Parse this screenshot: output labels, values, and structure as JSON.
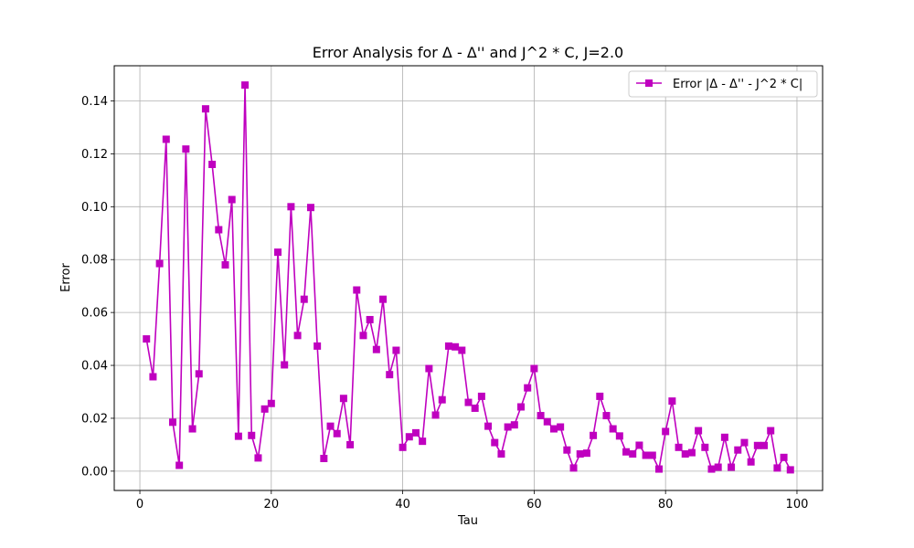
{
  "chart_data": {
    "type": "line",
    "title": "Error Analysis for Δ - Δ'' and J^2 * C, J=2.0",
    "xlabel": "Tau",
    "ylabel": "Error",
    "xlim": [
      -3.9,
      103.9
    ],
    "ylim": [
      -0.0073,
      0.1533
    ],
    "xticks": [
      0,
      20,
      40,
      60,
      80,
      100
    ],
    "xtick_labels": [
      "0",
      "20",
      "40",
      "60",
      "80",
      "100"
    ],
    "yticks": [
      0.0,
      0.02,
      0.04,
      0.06,
      0.08,
      0.1,
      0.12,
      0.14
    ],
    "ytick_labels": [
      "0.00",
      "0.02",
      "0.04",
      "0.06",
      "0.08",
      "0.10",
      "0.12",
      "0.14"
    ],
    "grid": true,
    "legend_position": "top-right",
    "series": [
      {
        "name": "Error |Δ - Δ'' - J^2 * C|",
        "color": "#bf00bf",
        "marker": "square",
        "x": [
          1,
          2,
          3,
          4,
          5,
          6,
          7,
          8,
          9,
          10,
          11,
          12,
          13,
          14,
          15,
          16,
          17,
          18,
          19,
          20,
          21,
          22,
          23,
          24,
          25,
          26,
          27,
          28,
          29,
          30,
          31,
          32,
          33,
          34,
          35,
          36,
          37,
          38,
          39,
          40,
          41,
          42,
          43,
          44,
          45,
          46,
          47,
          48,
          49,
          50,
          51,
          52,
          53,
          54,
          55,
          56,
          57,
          58,
          59,
          60,
          61,
          62,
          63,
          64,
          65,
          66,
          67,
          68,
          69,
          70,
          71,
          72,
          73,
          74,
          75,
          76,
          77,
          78,
          79,
          80,
          81,
          82,
          83,
          84,
          85,
          86,
          87,
          88,
          89,
          90,
          91,
          92,
          93,
          94,
          95,
          96,
          97,
          98,
          99
        ],
        "values": [
          0.05,
          0.0357,
          0.0785,
          0.1255,
          0.0185,
          0.0022,
          0.1218,
          0.016,
          0.0368,
          0.137,
          0.116,
          0.0913,
          0.078,
          0.1027,
          0.0132,
          0.146,
          0.0135,
          0.005,
          0.0235,
          0.0256,
          0.0828,
          0.0402,
          0.1,
          0.0513,
          0.065,
          0.0997,
          0.0473,
          0.0048,
          0.017,
          0.0142,
          0.0275,
          0.01,
          0.0685,
          0.0513,
          0.0573,
          0.046,
          0.065,
          0.0365,
          0.0457,
          0.009,
          0.013,
          0.0145,
          0.0113,
          0.0388,
          0.0212,
          0.027,
          0.0473,
          0.047,
          0.0457,
          0.026,
          0.0238,
          0.0283,
          0.017,
          0.0108,
          0.0065,
          0.0167,
          0.0175,
          0.0243,
          0.0315,
          0.0388,
          0.021,
          0.0187,
          0.016,
          0.0167,
          0.008,
          0.0012,
          0.0065,
          0.0068,
          0.0135,
          0.0283,
          0.021,
          0.016,
          0.0133,
          0.0073,
          0.0065,
          0.0098,
          0.006,
          0.006,
          0.0008,
          0.015,
          0.0265,
          0.009,
          0.0065,
          0.007,
          0.0153,
          0.009,
          0.0008,
          0.0015,
          0.0128,
          0.0015,
          0.008,
          0.0108,
          0.0035,
          0.0097,
          0.0097,
          0.0153,
          0.0012,
          0.0052,
          0.0005
        ]
      }
    ]
  }
}
